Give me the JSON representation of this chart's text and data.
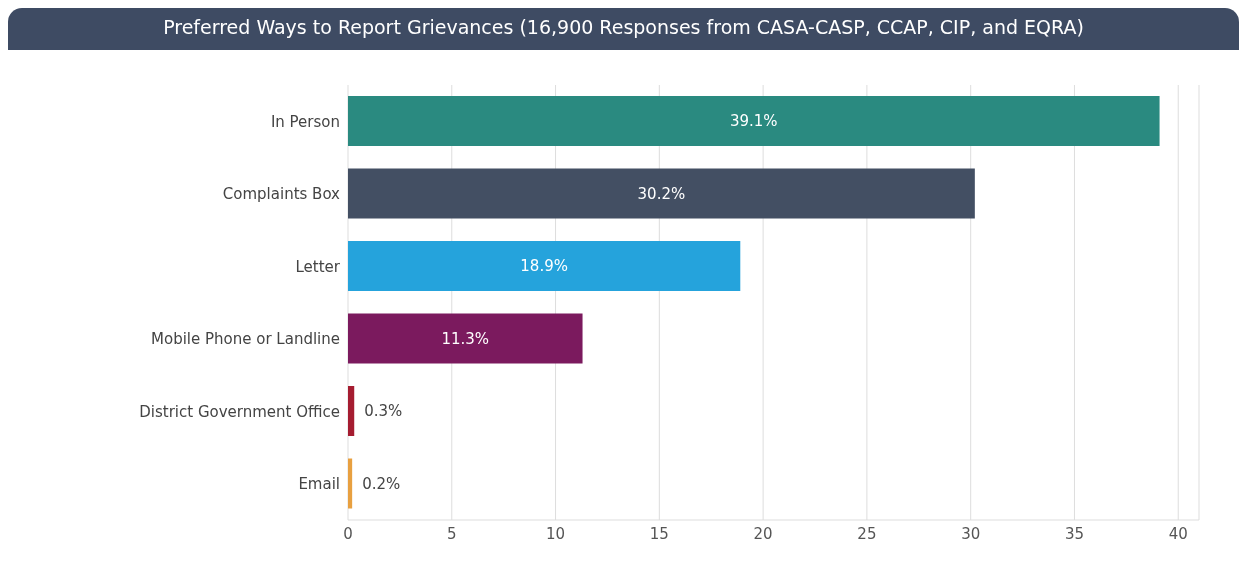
{
  "chart_data": {
    "type": "bar",
    "orientation": "horizontal",
    "title": "Preferred Ways to Report Grievances (16,900 Responses from CASA-CASP, CCAP, CIP, and EQRA)",
    "categories": [
      "In Person",
      "Complaints Box",
      "Letter",
      "Mobile Phone or Landline",
      "District Government Office",
      "Email"
    ],
    "values": [
      39.1,
      30.2,
      18.9,
      11.3,
      0.3,
      0.2
    ],
    "colors": [
      "#2a8a80",
      "#434f63",
      "#25a3dc",
      "#7b1a5e",
      "#a51c30",
      "#e8a040"
    ],
    "value_labels": [
      "39.1%",
      "30.2%",
      "18.9%",
      "11.3%",
      "0.3%",
      "0.2%"
    ],
    "xlim": [
      0,
      41
    ],
    "xticks": [
      0,
      5,
      10,
      15,
      20,
      25,
      30,
      35,
      40
    ],
    "grid": "x",
    "legend": false
  }
}
